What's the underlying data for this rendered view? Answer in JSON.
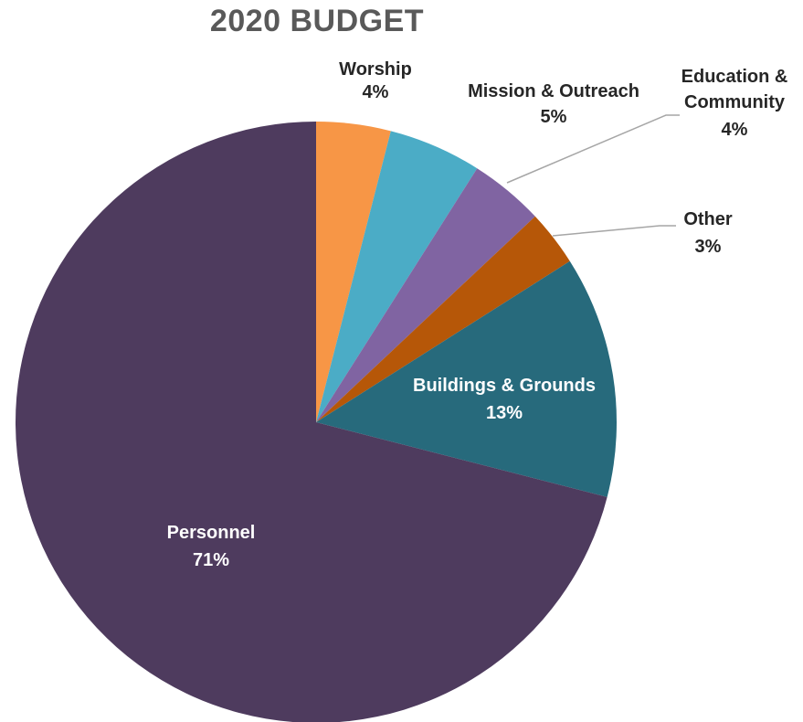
{
  "chart_data": {
    "type": "pie",
    "title": "2020 BUDGET",
    "slices": [
      {
        "name": "Worship",
        "value": 4,
        "label": "4%",
        "color": "#F79646",
        "label_color": "#262626"
      },
      {
        "name": "Mission & Outreach",
        "value": 5,
        "label": "5%",
        "color": "#4BACC6",
        "label_color": "#262626"
      },
      {
        "name": "Education & Community",
        "value": 4,
        "label": "4%",
        "color": "#8064A2",
        "label_color": "#262626"
      },
      {
        "name": "Other",
        "value": 3,
        "label": "3%",
        "color": "#B65708",
        "label_color": "#262626"
      },
      {
        "name": "Buildings & Grounds",
        "value": 13,
        "label": "13%",
        "color": "#276A7C",
        "label_color": "#ffffff"
      },
      {
        "name": "Personnel",
        "value": 71,
        "label": "71%",
        "color": "#4E3B5E",
        "label_color": "#ffffff"
      }
    ]
  }
}
